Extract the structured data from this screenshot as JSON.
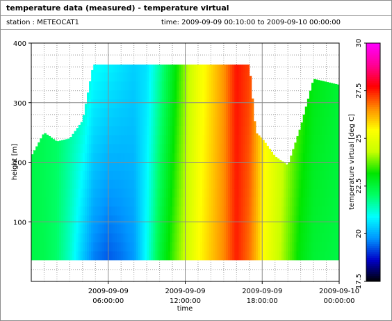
{
  "header": {
    "title": "temperature data (measured) - temperature virtual",
    "station": "station : METEOCAT1",
    "time_range": "time: 2009-09-09 00:10:00 to 2009-09-10 00:00:00"
  },
  "chart_data": {
    "type": "heatmap",
    "title": "temperature data (measured) - temperature virtual",
    "xlabel": "time",
    "ylabel": "height [m]",
    "colorbar_label": "temperature virtual [deg C]",
    "xlim": [
      "2009-09-09 00:00",
      "2009-09-10 00:00"
    ],
    "ylim": [
      0,
      400
    ],
    "x_ticks": [
      {
        "value": "2009-09-09 06:00",
        "date": "2009-09-09",
        "time": "06:00:00"
      },
      {
        "value": "2009-09-09 12:00",
        "date": "2009-09-09",
        "time": "12:00:00"
      },
      {
        "value": "2009-09-09 18:00",
        "date": "2009-09-09",
        "time": "18:00:00"
      },
      {
        "value": "2009-09-10 00:00",
        "date": "2009-09-10",
        "time": "00:00:00"
      }
    ],
    "y_ticks": [
      "100",
      "200",
      "300",
      "400"
    ],
    "colorbar_range": [
      17.5,
      30
    ],
    "colorbar_ticks": [
      "17.5",
      "20",
      "22.5",
      "25",
      "27.5",
      "30"
    ],
    "colormap": [
      "#000000",
      "#0000c8",
      "#0096ff",
      "#00ffff",
      "#00ff64",
      "#00e600",
      "#c8ff00",
      "#ffff00",
      "#ff8c00",
      "#ff0000",
      "#ff0096",
      "#ff00ff"
    ],
    "grid": true,
    "height_range": [
      36,
      364
    ],
    "profiles": [
      {
        "time": "2009-09-09 00:00",
        "top_height": 210,
        "temp_bottom": 22.4,
        "temp_top": 22.4
      },
      {
        "time": "2009-09-09 01:00",
        "top_height": 250,
        "temp_bottom": 22.3,
        "temp_top": 22.2
      },
      {
        "time": "2009-09-09 02:00",
        "top_height": 235,
        "temp_bottom": 22.0,
        "temp_top": 22.1
      },
      {
        "time": "2009-09-09 03:00",
        "top_height": 240,
        "temp_bottom": 21.3,
        "temp_top": 21.8
      },
      {
        "time": "2009-09-09 04:00",
        "top_height": 270,
        "temp_bottom": 20.3,
        "temp_top": 21.6
      },
      {
        "time": "2009-09-09 04:50",
        "top_height": 364,
        "temp_bottom": 19.6,
        "temp_top": 21.0
      },
      {
        "time": "2009-09-09 06:00",
        "top_height": 364,
        "temp_bottom": 19.3,
        "temp_top": 20.8
      },
      {
        "time": "2009-09-09 07:00",
        "top_height": 364,
        "temp_bottom": 19.5,
        "temp_top": 20.6
      },
      {
        "time": "2009-09-09 08:00",
        "top_height": 364,
        "temp_bottom": 19.8,
        "temp_top": 20.4
      },
      {
        "time": "2009-09-09 09:00",
        "top_height": 364,
        "temp_bottom": 21.0,
        "temp_top": 20.6
      },
      {
        "time": "2009-09-09 10:00",
        "top_height": 364,
        "temp_bottom": 22.5,
        "temp_top": 21.6
      },
      {
        "time": "2009-09-09 11:00",
        "top_height": 364,
        "temp_bottom": 23.5,
        "temp_top": 22.8
      },
      {
        "time": "2009-09-09 12:00",
        "top_height": 364,
        "temp_bottom": 24.4,
        "temp_top": 24.0
      },
      {
        "time": "2009-09-09 13:00",
        "top_height": 364,
        "temp_bottom": 25.4,
        "temp_top": 25.1
      },
      {
        "time": "2009-09-09 14:00",
        "top_height": 364,
        "temp_bottom": 26.0,
        "temp_top": 25.8
      },
      {
        "time": "2009-09-09 15:00",
        "top_height": 364,
        "temp_bottom": 26.6,
        "temp_top": 26.5
      },
      {
        "time": "2009-09-09 16:00",
        "top_height": 364,
        "temp_bottom": 27.5,
        "temp_top": 27.6
      },
      {
        "time": "2009-09-09 17:00",
        "top_height": 364,
        "temp_bottom": 26.8,
        "temp_top": 27.2
      },
      {
        "time": "2009-09-09 17:30",
        "top_height": 250,
        "temp_bottom": 26.2,
        "temp_top": 26.5
      },
      {
        "time": "2009-09-09 18:00",
        "top_height": 240,
        "temp_bottom": 25.5,
        "temp_top": 25.8
      },
      {
        "time": "2009-09-09 19:00",
        "top_height": 210,
        "temp_bottom": 24.6,
        "temp_top": 25.0
      },
      {
        "time": "2009-09-09 20:00",
        "top_height": 195,
        "temp_bottom": 23.8,
        "temp_top": 24.2
      },
      {
        "time": "2009-09-09 21:00",
        "top_height": 260,
        "temp_bottom": 23.0,
        "temp_top": 23.6
      },
      {
        "time": "2009-09-09 22:00",
        "top_height": 340,
        "temp_bottom": 22.6,
        "temp_top": 23.0
      },
      {
        "time": "2009-09-10 00:00",
        "top_height": 330,
        "temp_bottom": 22.4,
        "temp_top": 22.6
      }
    ]
  }
}
